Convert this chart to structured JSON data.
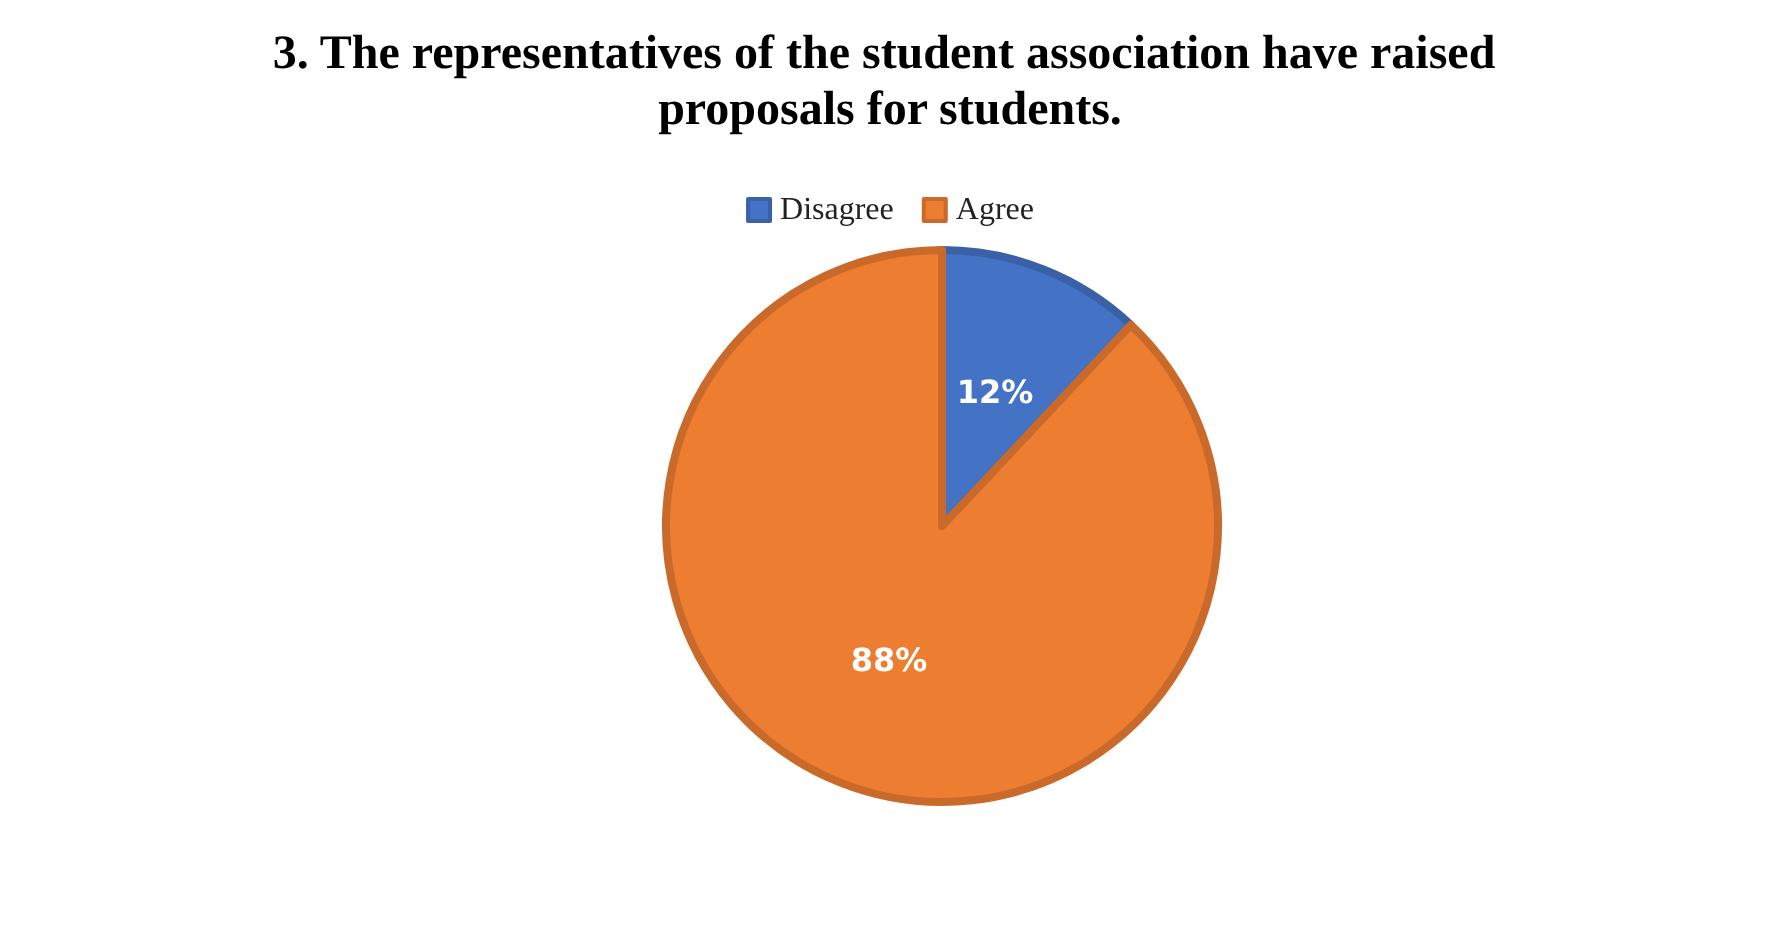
{
  "chart_data": {
    "type": "pie",
    "title": "3. The representatives of the student association have raised proposals for students.",
    "categories": [
      "Disagree",
      "Agree"
    ],
    "values": [
      12,
      88
    ],
    "colors": [
      "#4472c4",
      "#ed7d31"
    ],
    "value_labels": [
      "12%",
      "88%"
    ],
    "legend": "top"
  }
}
